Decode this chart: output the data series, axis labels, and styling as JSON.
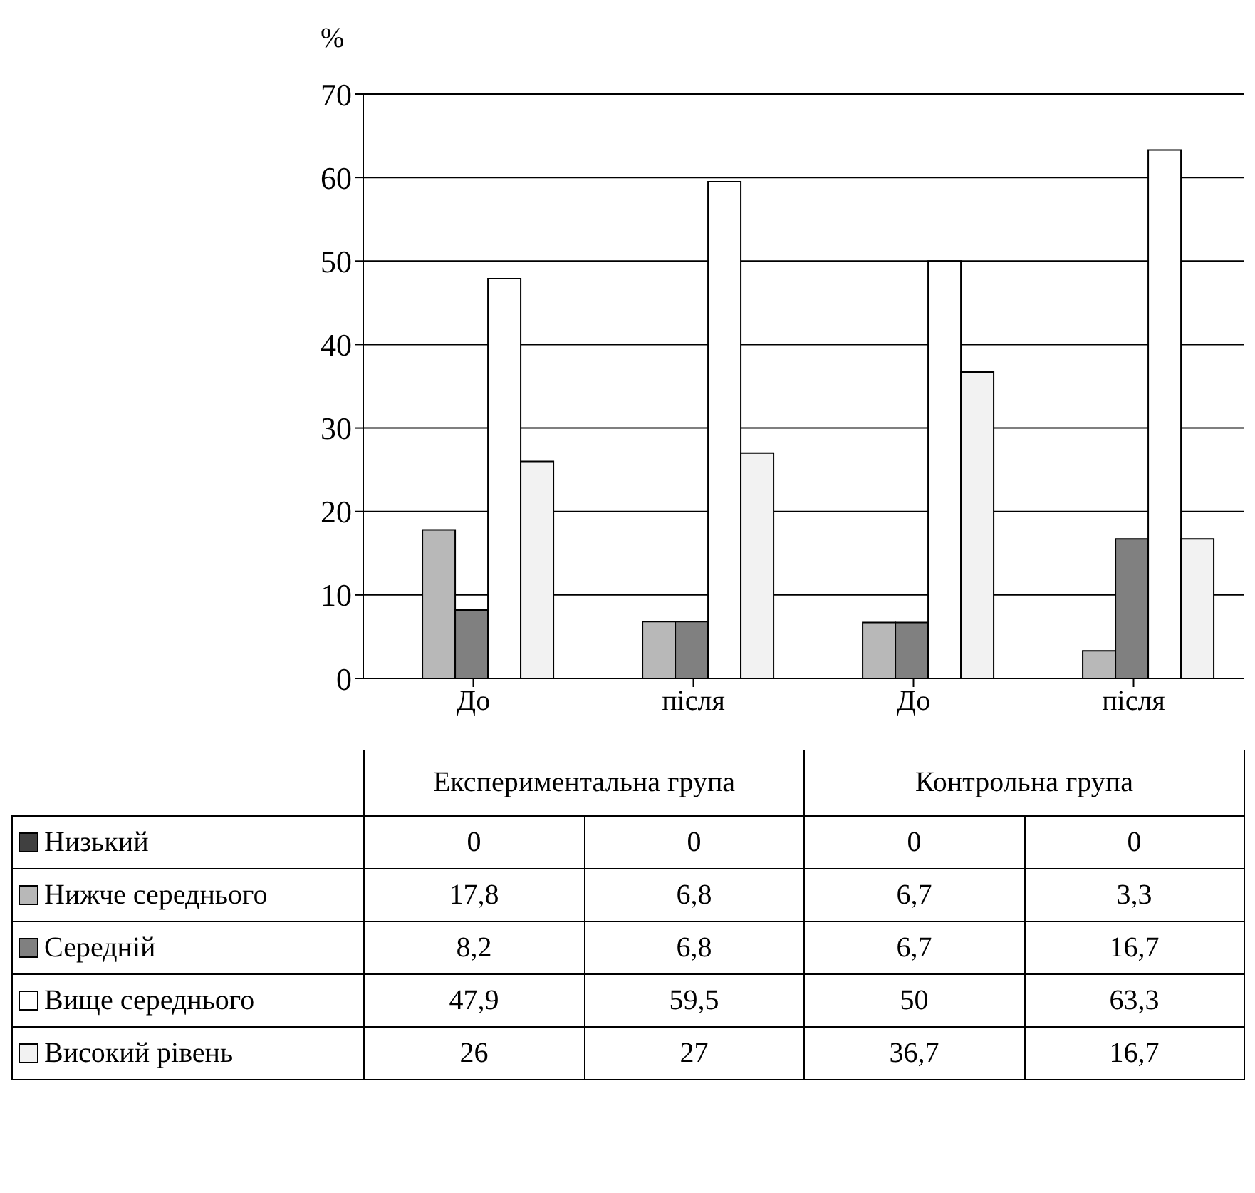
{
  "chart_data": {
    "type": "bar",
    "ylabel": "%",
    "categories": [
      "До",
      "після",
      "До",
      "після"
    ],
    "annotations": [
      "Експериментальна група",
      "Контрольна група"
    ],
    "series": [
      {
        "name": "Низький",
        "color": "#404040",
        "values": [
          0,
          0,
          0,
          0
        ],
        "value_labels": [
          "0",
          "0",
          "0",
          "0"
        ]
      },
      {
        "name": "Нижче середнього",
        "color": "#b8b8b8",
        "values": [
          17.8,
          6.8,
          6.7,
          3.3
        ],
        "value_labels": [
          "17,8",
          "6,8",
          "6,7",
          "3,3"
        ]
      },
      {
        "name": "Середній",
        "color": "#808080",
        "values": [
          8.2,
          6.8,
          6.7,
          16.7
        ],
        "value_labels": [
          "8,2",
          "6,8",
          "6,7",
          "16,7"
        ]
      },
      {
        "name": "Вище середнього",
        "color": "#ffffff",
        "values": [
          47.9,
          59.5,
          50,
          63.3
        ],
        "value_labels": [
          "47,9",
          "59,5",
          "50",
          "63,3"
        ]
      },
      {
        "name": "Високий рівень",
        "color": "#f2f2f2",
        "values": [
          26,
          27,
          36.7,
          16.7
        ],
        "value_labels": [
          "26",
          "27",
          "36,7",
          "16,7"
        ]
      }
    ],
    "ylim": [
      0,
      70
    ],
    "yticks": [
      0,
      10,
      20,
      30,
      40,
      50,
      60,
      70
    ],
    "grid": "y",
    "legend": "bottom"
  }
}
